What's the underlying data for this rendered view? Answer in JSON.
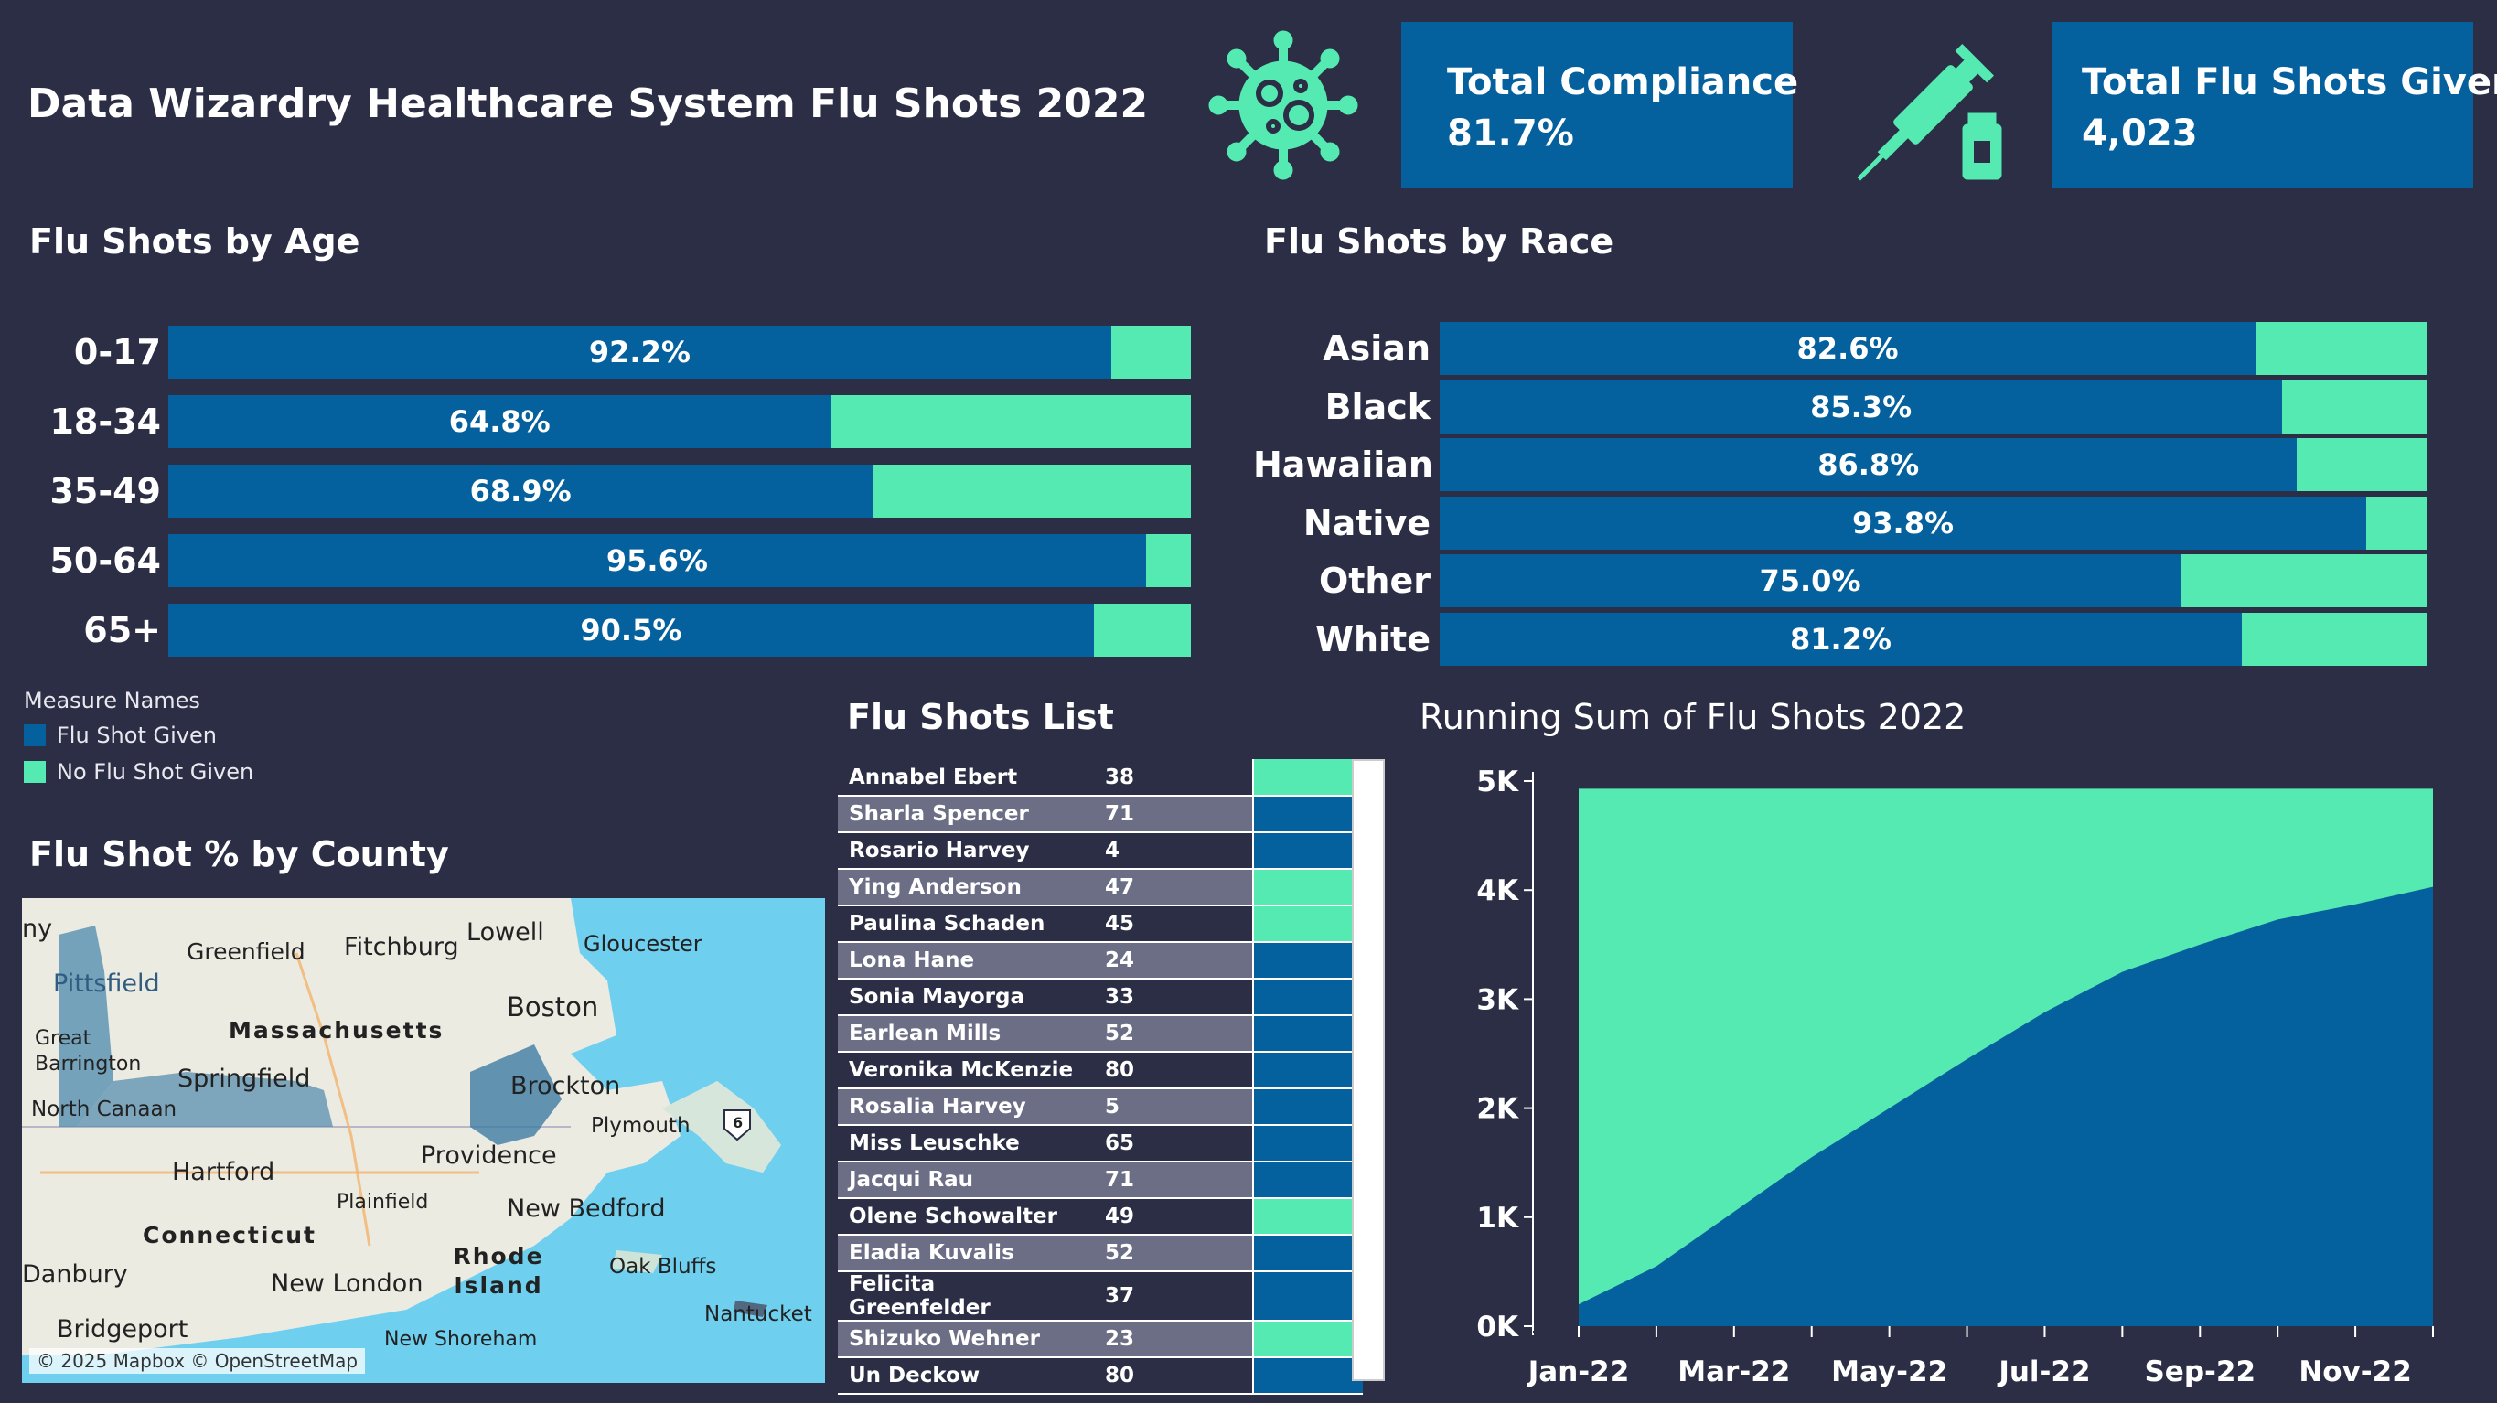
{
  "dashboard": {
    "title": "Data  Wizardry Healthcare System Flu Shots 2022"
  },
  "kpis": {
    "compliance": {
      "label": "Total Compliance",
      "value": "81.7%"
    },
    "total_shots": {
      "label": "Total Flu Shots Given",
      "value": "4,023"
    }
  },
  "icons": {
    "virus": "virus-icon",
    "syringe": "syringe-icon"
  },
  "colors": {
    "given": "#05609e",
    "not_given": "#55eab2",
    "background": "#2c2e45"
  },
  "age": {
    "title": "Flu Shots by Age",
    "rows": [
      {
        "label": "0-17",
        "pct_text": "92.2%",
        "pct": 92.2
      },
      {
        "label": "18-34",
        "pct_text": "64.8%",
        "pct": 64.8
      },
      {
        "label": "35-49",
        "pct_text": "68.9%",
        "pct": 68.9
      },
      {
        "label": "50-64",
        "pct_text": "95.6%",
        "pct": 95.6
      },
      {
        "label": "65+",
        "pct_text": "90.5%",
        "pct": 90.5
      }
    ]
  },
  "race": {
    "title": "Flu Shots by Race",
    "rows": [
      {
        "label": "Asian",
        "pct_text": "82.6%",
        "pct": 82.6
      },
      {
        "label": "Black",
        "pct_text": "85.3%",
        "pct": 85.3
      },
      {
        "label": "Hawaiian",
        "pct_text": "86.8%",
        "pct": 86.8
      },
      {
        "label": "Native",
        "pct_text": "93.8%",
        "pct": 93.8
      },
      {
        "label": "Other",
        "pct_text": "75.0%",
        "pct": 75.0
      },
      {
        "label": "White",
        "pct_text": "81.2%",
        "pct": 81.2
      }
    ]
  },
  "legend": {
    "title": "Measure Names",
    "items": [
      "Flu Shot Given",
      "No Flu Shot Given"
    ]
  },
  "county": {
    "title": "Flu Shot % by County",
    "attribution": "© 2025 Mapbox © OpenStreetMap",
    "places": [
      "ny",
      "Greenfield",
      "Fitchburg",
      "Lowell",
      "Gloucester",
      "Pittsfield",
      "Boston",
      "Massachusetts",
      "Great Barrington",
      "Springfield",
      "Brockton",
      "North Canaan",
      "Plymouth",
      "Hartford",
      "Providence",
      "Plainfield",
      "New Bedford",
      "Connecticut",
      "Rhode Island",
      "Danbury",
      "New London",
      "Oak Bluffs",
      "Nantucket",
      "Bridgeport",
      "New Shoreham",
      "6"
    ]
  },
  "list": {
    "title": "Flu Shots List",
    "rows": [
      {
        "name": "Annabel Ebert",
        "age": "38",
        "given": false
      },
      {
        "name": "Sharla Spencer",
        "age": "71",
        "given": true
      },
      {
        "name": "Rosario Harvey",
        "age": "4",
        "given": true
      },
      {
        "name": "Ying Anderson",
        "age": "47",
        "given": false
      },
      {
        "name": "Paulina Schaden",
        "age": "45",
        "given": false
      },
      {
        "name": "Lona Hane",
        "age": "24",
        "given": true
      },
      {
        "name": "Sonia Mayorga",
        "age": "33",
        "given": true
      },
      {
        "name": "Earlean Mills",
        "age": "52",
        "given": true
      },
      {
        "name": "Veronika McKenzie",
        "age": "80",
        "given": true
      },
      {
        "name": "Rosalia Harvey",
        "age": "5",
        "given": true
      },
      {
        "name": "Miss Leuschke",
        "age": "65",
        "given": true
      },
      {
        "name": "Jacqui Rau",
        "age": "71",
        "given": true
      },
      {
        "name": "Olene Schowalter",
        "age": "49",
        "given": false
      },
      {
        "name": "Eladia Kuvalis",
        "age": "52",
        "given": true
      },
      {
        "name": "Felicita Greenfelder",
        "age": "37",
        "given": true
      },
      {
        "name": "Shizuko Wehner",
        "age": "23",
        "given": false
      },
      {
        "name": "Un Deckow",
        "age": "80",
        "given": true
      }
    ]
  },
  "chart_data": {
    "type": "area",
    "title": "Running Sum of Flu Shots 2022",
    "x": [
      "Jan-22",
      "Feb-22",
      "Mar-22",
      "Apr-22",
      "May-22",
      "Jun-22",
      "Jul-22",
      "Aug-22",
      "Sep-22",
      "Oct-22",
      "Nov-22",
      "Dec-22"
    ],
    "xticks": [
      "Jan-22",
      "Mar-22",
      "May-22",
      "Jul-22",
      "Sep-22",
      "Nov-22"
    ],
    "yticks": [
      "0K",
      "1K",
      "2K",
      "3K",
      "4K",
      "5K"
    ],
    "ylim": [
      0,
      5000
    ],
    "series": [
      {
        "name": "Flu Shot Given",
        "values": [
          200,
          550,
          1050,
          1550,
          2000,
          2450,
          2880,
          3250,
          3500,
          3730,
          3870,
          4030
        ]
      },
      {
        "name": "No Flu Shot Given",
        "values": [
          4730,
          4380,
          3880,
          3380,
          2930,
          2480,
          2050,
          1680,
          1430,
          1200,
          1060,
          900
        ]
      }
    ]
  }
}
